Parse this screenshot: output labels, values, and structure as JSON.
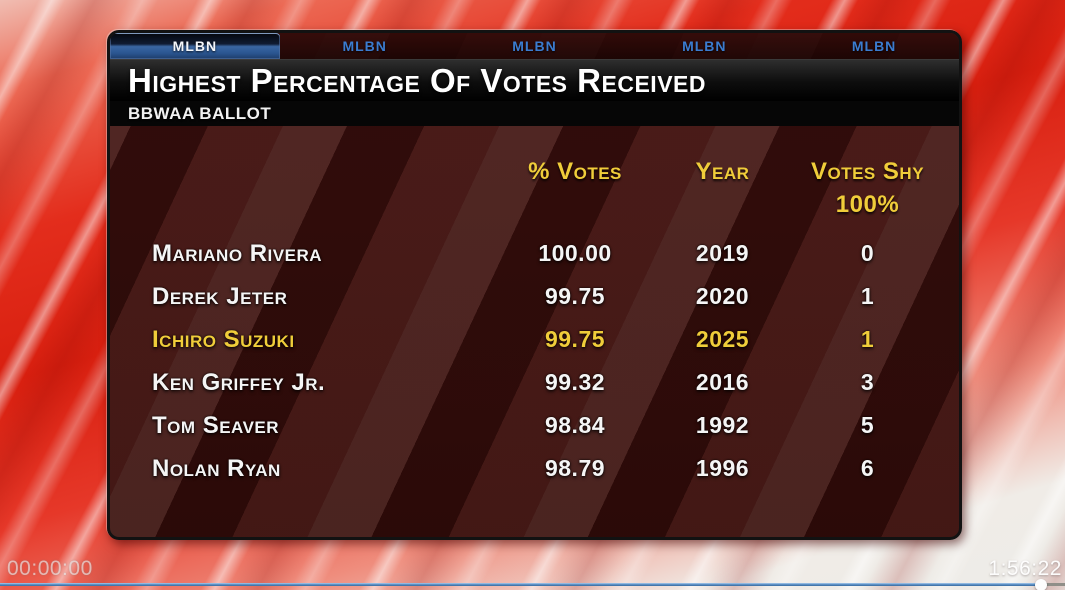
{
  "tabs": [
    {
      "label": "MLBN",
      "active": true
    },
    {
      "label": "MLBN",
      "active": false
    },
    {
      "label": "MLBN",
      "active": false
    },
    {
      "label": "MLBN",
      "active": false
    },
    {
      "label": "MLBN",
      "active": false
    }
  ],
  "header": {
    "title": "Highest Percentage Of Votes Received",
    "subtitle": "BBWAA Ballot"
  },
  "table": {
    "columns": {
      "pct": "% Votes",
      "year": "Year",
      "shy": "Votes Shy",
      "shy_subline": "100%"
    },
    "rows": [
      {
        "name": "Mariano Rivera",
        "pct": "100.00",
        "year": "2019",
        "shy": "0",
        "highlight": false
      },
      {
        "name": "Derek Jeter",
        "pct": "99.75",
        "year": "2020",
        "shy": "1",
        "highlight": false
      },
      {
        "name": "Ichiro Suzuki",
        "pct": "99.75",
        "year": "2025",
        "shy": "1",
        "highlight": true
      },
      {
        "name": "Ken Griffey Jr.",
        "pct": "99.32",
        "year": "2016",
        "shy": "3",
        "highlight": false
      },
      {
        "name": "Tom Seaver",
        "pct": "98.84",
        "year": "1992",
        "shy": "5",
        "highlight": false
      },
      {
        "name": "Nolan Ryan",
        "pct": "98.79",
        "year": "1996",
        "shy": "6",
        "highlight": false
      }
    ]
  },
  "player": {
    "elapsed": "00:00:00",
    "remaining": "1:56:22",
    "progress_pct": 97.7
  },
  "colors": {
    "accent_yellow": "#f0cd3a",
    "tab_blue": "#3b7cd0",
    "seekbar_blue": "#4d83ba",
    "background_red": "#d81f0f"
  }
}
